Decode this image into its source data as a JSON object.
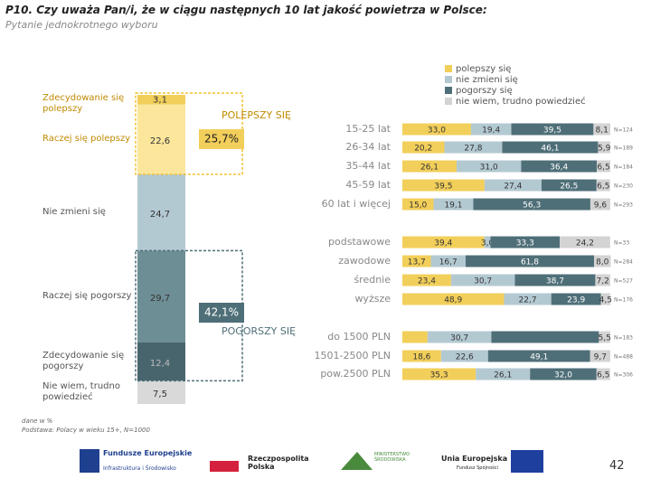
{
  "header": {
    "title": "P10. Czy uważa Pan/i, że w ciągu następnych 10 lat jakość powietrza w Polsce:",
    "subtitle": "Pytanie jednokrotnego wyboru"
  },
  "chart_data": [
    {
      "type": "bar",
      "stacked": true,
      "orientation": "vertical",
      "categories": [
        null
      ],
      "ylim": [
        0,
        100
      ],
      "series": [
        {
          "name": "Zdecydowanie się polepszy",
          "color": "#f2cf5a",
          "values": [
            3.1
          ],
          "value_labels": [
            "3,1"
          ]
        },
        {
          "name": "Raczej się polepszy",
          "color": "#fbe69c",
          "values": [
            22.6
          ],
          "value_labels": [
            "22,6"
          ]
        },
        {
          "name": "Nie zmieni się",
          "color": "#b3c9d2",
          "values": [
            24.7
          ],
          "value_labels": [
            "24,7"
          ]
        },
        {
          "name": "Raczej się pogorszy",
          "color": "#6e8e95",
          "values": [
            29.7
          ],
          "value_labels": [
            "29,7"
          ]
        },
        {
          "name": "Zdecydowanie się pogorszy",
          "color": "#48656d",
          "values": [
            12.4
          ],
          "value_labels": [
            "12,4"
          ]
        },
        {
          "name": "Nie wiem, trudno powiedzieć",
          "color": "#d9d9d9",
          "values": [
            7.5
          ],
          "value_labels": [
            "7,5"
          ]
        }
      ],
      "annotations": [
        "POLEPSZY SIĘ",
        "25,7%",
        "42,1%",
        "POGORSZY SIĘ"
      ]
    },
    {
      "type": "bar",
      "stacked": true,
      "orientation": "horizontal",
      "xlim": [
        0,
        100
      ],
      "legend": "top-right",
      "categories": [
        "15-25 lat",
        "26-34 lat",
        "35-44 lat",
        "45-59 lat",
        "60 lat i więcej",
        "podstawowe",
        "zawodowe",
        "średnie",
        "wyższe",
        "do 1500 PLN",
        "1501-2500 PLN",
        "pow.2500 PLN"
      ],
      "sample_sizes": [
        "N=124",
        "N=189",
        "N=184",
        "N=230",
        "N=293",
        "N=33",
        "N=284",
        "N=527",
        "N=176",
        "N=183",
        "N=488",
        "N=306"
      ],
      "series": [
        {
          "name": "polepszy się",
          "color": "#f2cf5a",
          "values": [
            33.0,
            20.2,
            26.1,
            39.5,
            15.0,
            39.4,
            13.7,
            23.4,
            48.9,
            12.1,
            18.6,
            35.3
          ],
          "value_labels": [
            "33,0",
            "20,2",
            "26,1",
            "39,5",
            "15,0",
            "39,4",
            "13,7",
            "23,4",
            "48,9",
            null,
            "18,6",
            "35,3"
          ]
        },
        {
          "name": "nie zmieni się",
          "color": "#b3c9d2",
          "values": [
            19.4,
            27.8,
            31.0,
            27.4,
            19.1,
            3.0,
            16.7,
            30.7,
            22.7,
            30.7,
            22.6,
            26.1
          ],
          "value_labels": [
            "19,4",
            "27,8",
            "31,0",
            "27,4",
            "19,1",
            "3,0",
            "16,7",
            "30,7",
            "22,7",
            "30,7",
            "22,6",
            "26,1"
          ]
        },
        {
          "name": "pogorszy się",
          "color": "#4f6f78",
          "values": [
            39.5,
            46.1,
            36.4,
            26.5,
            56.3,
            33.3,
            61.8,
            38.7,
            23.9,
            51.7,
            49.1,
            32.0
          ],
          "value_labels": [
            "39,5",
            "46,1",
            "36,4",
            "26,5",
            "56,3",
            "33,3",
            "61,8",
            "38,7",
            "23,9",
            null,
            "49,1",
            "32,0"
          ]
        },
        {
          "name": "nie wiem, trudno powiedzieć",
          "color": "#d3d3d3",
          "values": [
            8.1,
            5.9,
            6.5,
            6.5,
            9.6,
            24.2,
            8.0,
            7.2,
            4.5,
            5.5,
            9.7,
            6.5
          ],
          "value_labels": [
            "8,1",
            "5,9",
            "6,5",
            "6,5",
            "9,6",
            "24,2",
            "8,0",
            "7,2",
            "4,5",
            "5,5",
            "9,7",
            "6,5"
          ]
        }
      ]
    }
  ],
  "footer": {
    "note": "dane w %",
    "base": "Podstawa: Polacy w wieku 15+, N=1000",
    "page": "42",
    "logos": [
      "Fundusze Europejskie",
      "Infrastruktura i Środowisko",
      "Rzeczpospolita Polska",
      "MINISTERSTWO ŚRODOWISKA",
      "Unia Europejska",
      "Fundusz Spójności"
    ]
  }
}
